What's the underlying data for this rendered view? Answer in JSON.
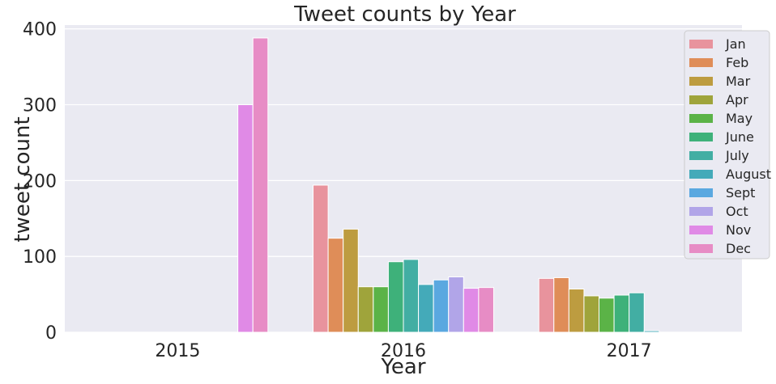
{
  "chart_data": {
    "type": "bar",
    "title": "Tweet counts by Year",
    "xlabel": "Year",
    "ylabel": "tweet count",
    "categories": [
      "2015",
      "2016",
      "2017"
    ],
    "ylim": [
      0,
      405
    ],
    "yticks": [
      0,
      100,
      200,
      300,
      400
    ],
    "grid": true,
    "legend_position": "top-right",
    "series": [
      {
        "name": "Jan",
        "color": "#e8939d",
        "values": [
          null,
          194,
          71
        ]
      },
      {
        "name": "Feb",
        "color": "#df8d58",
        "values": [
          null,
          124,
          72
        ]
      },
      {
        "name": "Mar",
        "color": "#bd9c40",
        "values": [
          null,
          136,
          57
        ]
      },
      {
        "name": "Apr",
        "color": "#9fa43b",
        "values": [
          null,
          60,
          48
        ]
      },
      {
        "name": "May",
        "color": "#5bb347",
        "values": [
          null,
          60,
          45
        ]
      },
      {
        "name": "June",
        "color": "#3eb17a",
        "values": [
          null,
          93,
          49
        ]
      },
      {
        "name": "July",
        "color": "#42aea3",
        "values": [
          null,
          96,
          52
        ]
      },
      {
        "name": "August",
        "color": "#44aab9",
        "values": [
          null,
          63,
          2
        ]
      },
      {
        "name": "Sept",
        "color": "#5aa8e0",
        "values": [
          null,
          69,
          null
        ]
      },
      {
        "name": "Oct",
        "color": "#b1a5e8",
        "values": [
          null,
          73,
          null
        ]
      },
      {
        "name": "Nov",
        "color": "#e08ae6",
        "values": [
          300,
          58,
          null
        ]
      },
      {
        "name": "Dec",
        "color": "#e78cc5",
        "values": [
          388,
          59,
          null
        ]
      }
    ]
  }
}
